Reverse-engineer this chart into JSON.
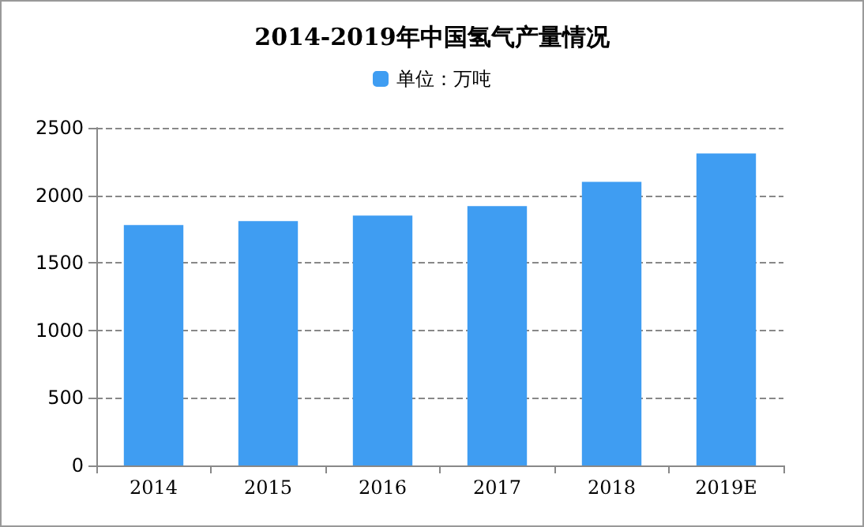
{
  "chart_data": {
    "type": "bar",
    "title": "2014-2019年中国氢气产量情况",
    "categories": [
      "2014",
      "2015",
      "2016",
      "2017",
      "2018",
      "2019E"
    ],
    "series": [
      {
        "name": "单位：万吨",
        "color": "#3f9df2",
        "values": [
          1780,
          1810,
          1850,
          1920,
          2100,
          2310
        ]
      }
    ],
    "ylim": [
      0,
      2500
    ],
    "yticks": [
      0,
      500,
      1000,
      1500,
      2000,
      2500
    ],
    "grid": "y",
    "legend": "top"
  }
}
